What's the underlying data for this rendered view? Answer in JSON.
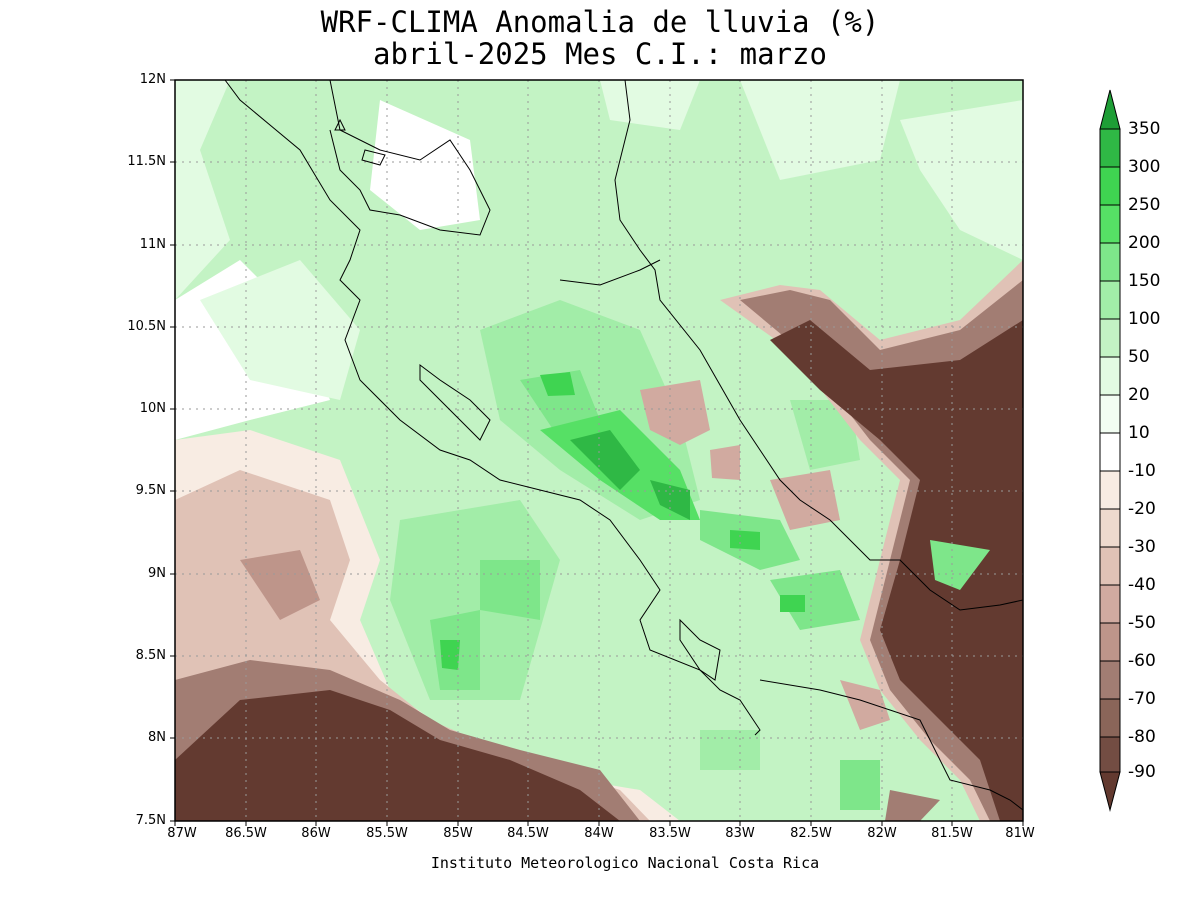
{
  "header": {
    "title_line1": "WRF-CLIMA Anomalia de lluvia (%)",
    "title_line2": "abril-2025 Mes C.I.: marzo"
  },
  "footer": {
    "credit": "Instituto Meteorologico Nacional Costa Rica"
  },
  "map": {
    "y_ticks": [
      "12N",
      "11.5N",
      "11N",
      "10.5N",
      "10N",
      "9.5N",
      "9N",
      "8.5N",
      "8N",
      "7.5N"
    ],
    "x_ticks": [
      "87W",
      "86.5W",
      "86W",
      "85.5W",
      "85W",
      "84.5W",
      "84W",
      "83.5W",
      "83W",
      "82.5W",
      "82W",
      "81.5W",
      "81W"
    ],
    "lat_range": [
      7.5,
      12
    ],
    "lon_range": [
      -87,
      -81
    ],
    "grid": true
  },
  "colorbar": {
    "labels": [
      "350",
      "300",
      "250",
      "200",
      "150",
      "100",
      "50",
      "20",
      "10",
      "-10",
      "-20",
      "-30",
      "-40",
      "-50",
      "-60",
      "-70",
      "-80",
      "-90"
    ],
    "colors": {
      "c350": "#1e9e36",
      "c300": "#2fb845",
      "c250": "#3fd451",
      "c200": "#56e065",
      "c150": "#7ee68a",
      "c100": "#a2eda8",
      "c50": "#c3f3c4",
      "c20": "#e2fbe2",
      "c10": "#ffffff",
      "n10": "#f8ece3",
      "n20": "#eed9cd",
      "n30": "#e0c2b6",
      "n40": "#d1aaa0",
      "n50": "#be958a",
      "n60": "#a27d73",
      "n70": "#8a6559",
      "n80": "#734d43",
      "n90": "#633a30"
    }
  }
}
